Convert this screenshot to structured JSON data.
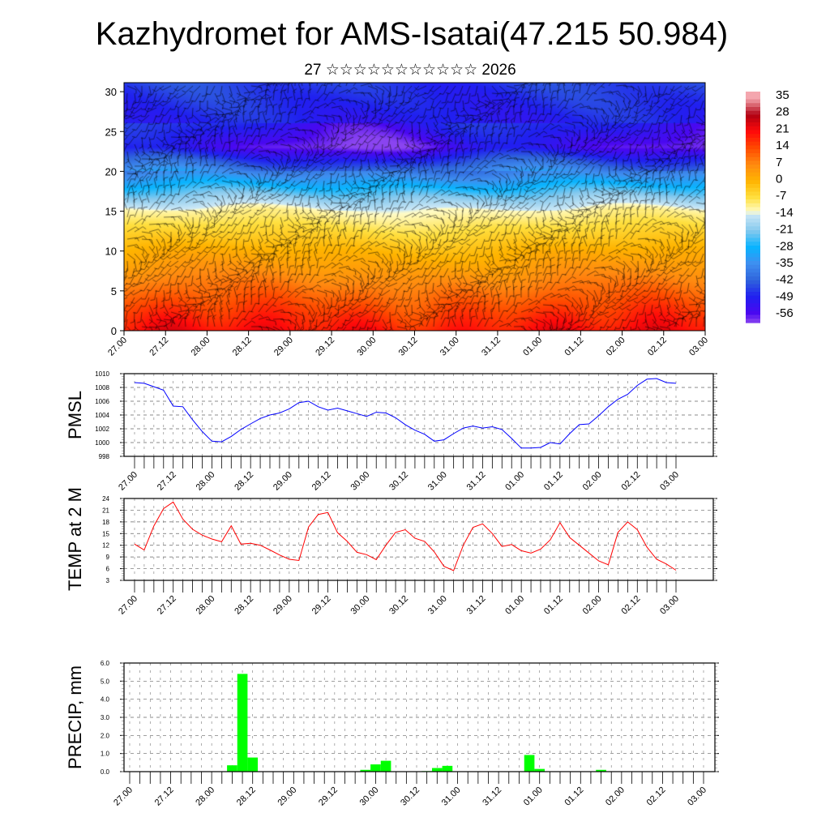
{
  "title": "Kazhydromet for AMS-Isatai(47.215 50.984)",
  "subtitle": "27 ☆☆☆☆☆☆☆☆☆☆☆ 2026",
  "time_labels": [
    "27.00",
    "27.12",
    "28.00",
    "28.12",
    "29.00",
    "29.12",
    "30.00",
    "30.12",
    "31.00",
    "31.12",
    "01.00",
    "01.12",
    "02.00",
    "02.12",
    "03.00"
  ],
  "chart_data": [
    {
      "type": "heatmap",
      "name": "cross-section",
      "description_kind": "temperature shading with wind barbs vs height",
      "y_ticks": [
        "0",
        "5",
        "10",
        "15",
        "20",
        "25",
        "30"
      ],
      "ylim": [
        0,
        31
      ],
      "colorbar": {
        "labels": [
          "35",
          "28",
          "21",
          "14",
          "7",
          "0",
          "-7",
          "-14",
          "-21",
          "-28",
          "-35",
          "-42",
          "-49",
          "-56"
        ],
        "range": [
          -60,
          38
        ],
        "colors": {
          "35": "#f4a6ae",
          "28": "#b00012",
          "21": "#ff0a0a",
          "14": "#ff4a00",
          "7": "#ff8a10",
          "0": "#ffb400",
          "-7": "#ffe040",
          "-13": "#fffcc8",
          "-14": "#cce8f6",
          "-21": "#86c9ee",
          "-28": "#08b4ff",
          "-35": "#3f8ff0",
          "-42": "#2f64dc",
          "-49": "#2020f0",
          "-56": "#4a08f0",
          "-60": "#8a44f0"
        }
      }
    },
    {
      "type": "line",
      "name": "pmsl",
      "ylabel": "PMSL",
      "ylim": [
        998,
        1010
      ],
      "y_ticks": [
        "998",
        "1000",
        "1002",
        "1004",
        "1006",
        "1008",
        "1010"
      ],
      "color": "#0000ff",
      "values": [
        1008.7,
        1008.6,
        1008.1,
        1007.6,
        1005.3,
        1005.2,
        1003.3,
        1001.6,
        1000.2,
        1000.1,
        1000.9,
        1001.9,
        1002.7,
        1003.5,
        1004.0,
        1004.3,
        1004.9,
        1005.8,
        1006.0,
        1005.2,
        1004.7,
        1005.0,
        1004.6,
        1004.2,
        1003.8,
        1004.4,
        1004.3,
        1003.6,
        1002.6,
        1001.8,
        1001.2,
        1000.2,
        1000.4,
        1001.3,
        1002.1,
        1002.4,
        1002.1,
        1002.3,
        1001.9,
        1000.6,
        999.2,
        999.2,
        999.3,
        1000.0,
        999.8,
        1001.3,
        1002.6,
        1002.7,
        1003.9,
        1005.2,
        1006.3,
        1007.0,
        1008.3,
        1009.2,
        1009.3,
        1008.7,
        1008.6
      ]
    },
    {
      "type": "line",
      "name": "temp",
      "ylabel": "TEMP at 2 M",
      "ylim": [
        3,
        24
      ],
      "y_ticks": [
        "3",
        "6",
        "9",
        "12",
        "15",
        "18",
        "21",
        "24"
      ],
      "color": "#ff0000",
      "values": [
        12.3,
        10.8,
        17.0,
        21.4,
        23.1,
        18.7,
        16.1,
        14.6,
        13.6,
        12.9,
        17.0,
        12.3,
        12.5,
        12.0,
        10.8,
        9.5,
        8.4,
        8.1,
        16.7,
        19.9,
        20.4,
        15.2,
        13.0,
        10.2,
        9.6,
        8.3,
        12.0,
        15.3,
        16.0,
        13.8,
        13.0,
        10.3,
        6.6,
        5.5,
        12.0,
        16.6,
        17.5,
        15.0,
        11.7,
        12.2,
        10.6,
        10.0,
        11.0,
        13.4,
        17.8,
        14.0,
        12.0,
        10.0,
        8.0,
        7.0,
        15.3,
        18.0,
        16.0,
        11.5,
        8.4,
        7.2,
        5.6
      ]
    },
    {
      "type": "bar",
      "name": "precip",
      "ylabel": "PRECIP, mm",
      "ylim": [
        0,
        6
      ],
      "y_ticks": [
        "0.0",
        "1.0",
        "2.0",
        "3.0",
        "4.0",
        "5.0",
        "6.0"
      ],
      "color": "#00ff00",
      "values": [
        0,
        0,
        0,
        0,
        0,
        0,
        0,
        0,
        0,
        0.02,
        0.35,
        5.4,
        0.78,
        0,
        0,
        0,
        0,
        0,
        0,
        0,
        0,
        0,
        0,
        0.1,
        0.4,
        0.6,
        0,
        0,
        0,
        0.03,
        0.2,
        0.32,
        0,
        0,
        0,
        0,
        0,
        0,
        0,
        0.92,
        0.15,
        0,
        0,
        0,
        0,
        0,
        0.1,
        0,
        0,
        0,
        0,
        0,
        0,
        0,
        0,
        0,
        0
      ]
    }
  ]
}
